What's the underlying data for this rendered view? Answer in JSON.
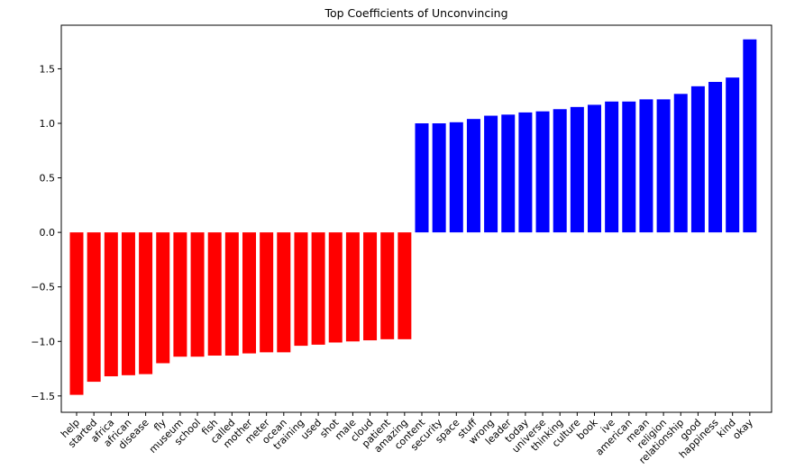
{
  "chart_data": {
    "type": "bar",
    "title": "Top Coefficients of Unconvincing",
    "xlabel": "",
    "ylabel": "",
    "ylim": [
      -1.65,
      1.9
    ],
    "yticks": [
      -1.5,
      -1.0,
      -0.5,
      0.0,
      0.5,
      1.0,
      1.5
    ],
    "ytick_labels": [
      "−1.5",
      "−1.0",
      "−0.5",
      "0.0",
      "0.5",
      "1.0",
      "1.5"
    ],
    "grid": false,
    "colors": {
      "negative": "#ff0000",
      "positive": "#0000ff"
    },
    "categories": [
      "help",
      "started",
      "africa",
      "african",
      "disease",
      "fly",
      "museum",
      "school",
      "fish",
      "called",
      "mother",
      "meter",
      "ocean",
      "training",
      "used",
      "shot",
      "male",
      "cloud",
      "patient",
      "amazing",
      "content",
      "security",
      "space",
      "stuff",
      "wrong",
      "leader",
      "today",
      "universe",
      "thinking",
      "culture",
      "book",
      "ive",
      "american",
      "mean",
      "religion",
      "relationship",
      "good",
      "happiness",
      "kind",
      "okay"
    ],
    "values": [
      -1.49,
      -1.37,
      -1.32,
      -1.31,
      -1.3,
      -1.2,
      -1.14,
      -1.14,
      -1.13,
      -1.13,
      -1.11,
      -1.1,
      -1.1,
      -1.04,
      -1.03,
      -1.01,
      -1.0,
      -0.99,
      -0.98,
      -0.98,
      1.0,
      1.0,
      1.01,
      1.04,
      1.07,
      1.08,
      1.1,
      1.11,
      1.13,
      1.15,
      1.17,
      1.2,
      1.2,
      1.22,
      1.22,
      1.27,
      1.34,
      1.38,
      1.42,
      1.77
    ]
  }
}
